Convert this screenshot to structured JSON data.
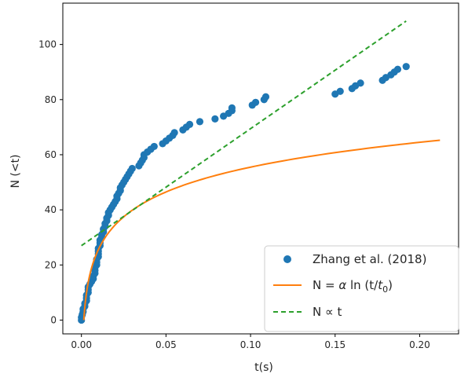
{
  "chart_data": {
    "type": "scatter",
    "title": "",
    "xlabel": "t(s)",
    "ylabel": "N (<t)",
    "xlim": [
      -0.011,
      0.223
    ],
    "ylim": [
      -5,
      115
    ],
    "xticks": [
      0.0,
      0.05,
      0.1,
      0.15,
      0.2
    ],
    "xtick_labels": [
      "0.00",
      "0.05",
      "0.10",
      "0.15",
      "0.20"
    ],
    "yticks": [
      0,
      20,
      40,
      60,
      80,
      100
    ],
    "ytick_labels": [
      "0",
      "20",
      "40",
      "60",
      "80",
      "100"
    ],
    "grid": false,
    "legend_position": "lower-right",
    "series": [
      {
        "name": "Zhang et al. (2018)",
        "kind": "scatter",
        "color": "#1f77b4",
        "points": [
          [
            0.0,
            0
          ],
          [
            0.0,
            1
          ],
          [
            0.0005,
            2
          ],
          [
            0.001,
            3
          ],
          [
            0.001,
            4
          ],
          [
            0.002,
            5
          ],
          [
            0.002,
            6
          ],
          [
            0.003,
            7
          ],
          [
            0.003,
            8
          ],
          [
            0.003,
            9
          ],
          [
            0.004,
            10
          ],
          [
            0.004,
            11
          ],
          [
            0.004,
            12
          ],
          [
            0.005,
            13
          ],
          [
            0.006,
            14
          ],
          [
            0.007,
            15
          ],
          [
            0.007,
            16
          ],
          [
            0.008,
            17
          ],
          [
            0.008,
            18
          ],
          [
            0.008,
            19
          ],
          [
            0.009,
            20
          ],
          [
            0.009,
            21
          ],
          [
            0.009,
            22
          ],
          [
            0.01,
            23
          ],
          [
            0.01,
            24
          ],
          [
            0.01,
            25
          ],
          [
            0.01,
            26
          ],
          [
            0.011,
            27
          ],
          [
            0.011,
            28
          ],
          [
            0.011,
            29
          ],
          [
            0.012,
            30
          ],
          [
            0.012,
            31
          ],
          [
            0.013,
            32
          ],
          [
            0.013,
            33
          ],
          [
            0.014,
            34
          ],
          [
            0.014,
            35
          ],
          [
            0.015,
            36
          ],
          [
            0.015,
            37
          ],
          [
            0.016,
            38
          ],
          [
            0.016,
            39
          ],
          [
            0.017,
            40
          ],
          [
            0.018,
            41
          ],
          [
            0.019,
            42
          ],
          [
            0.02,
            43
          ],
          [
            0.021,
            44
          ],
          [
            0.021,
            45
          ],
          [
            0.022,
            46
          ],
          [
            0.023,
            47
          ],
          [
            0.023,
            48
          ],
          [
            0.024,
            49
          ],
          [
            0.025,
            50
          ],
          [
            0.026,
            51
          ],
          [
            0.027,
            52
          ],
          [
            0.028,
            53
          ],
          [
            0.029,
            54
          ],
          [
            0.03,
            55
          ],
          [
            0.034,
            56
          ],
          [
            0.035,
            57
          ],
          [
            0.036,
            58
          ],
          [
            0.037,
            59
          ],
          [
            0.037,
            60
          ],
          [
            0.039,
            61
          ],
          [
            0.041,
            62
          ],
          [
            0.043,
            63
          ],
          [
            0.048,
            64
          ],
          [
            0.05,
            65
          ],
          [
            0.052,
            66
          ],
          [
            0.054,
            67
          ],
          [
            0.055,
            68
          ],
          [
            0.06,
            69
          ],
          [
            0.062,
            70
          ],
          [
            0.064,
            71
          ],
          [
            0.07,
            72
          ],
          [
            0.079,
            73
          ],
          [
            0.084,
            74
          ],
          [
            0.087,
            75
          ],
          [
            0.089,
            76
          ],
          [
            0.089,
            77
          ],
          [
            0.101,
            78
          ],
          [
            0.103,
            79
          ],
          [
            0.108,
            80
          ],
          [
            0.109,
            81
          ],
          [
            0.15,
            82
          ],
          [
            0.153,
            83
          ],
          [
            0.16,
            84
          ],
          [
            0.162,
            85
          ],
          [
            0.165,
            86
          ],
          [
            0.178,
            87
          ],
          [
            0.18,
            88
          ],
          [
            0.183,
            89
          ],
          [
            0.185,
            90
          ],
          [
            0.187,
            91
          ],
          [
            0.192,
            92
          ]
        ]
      },
      {
        "name": "N = α ln (t/t0)",
        "kind": "line",
        "color": "#ff7f0e",
        "fit": {
          "alpha": 13.0,
          "t0": 0.0014
        },
        "x_range": [
          0.0014,
          0.212
        ]
      },
      {
        "name": "N ∝ t",
        "kind": "line",
        "dash": true,
        "color": "#2ca02c",
        "x": [
          0.0,
          0.192
        ],
        "y": [
          27,
          108.5
        ]
      }
    ],
    "legend": [
      {
        "label": "Zhang et al. (2018)",
        "marker": "circle",
        "color": "#1f77b4"
      },
      {
        "label": "N = α ln (t/t0)",
        "marker": "line",
        "color": "#ff7f0e"
      },
      {
        "label": "N ∝ t",
        "marker": "dashed",
        "color": "#2ca02c"
      }
    ]
  },
  "legend_text": {
    "item0": "Zhang et al. (2018)",
    "item1_prefix": "N = ",
    "item1_alpha": "α",
    "item1_mid": " ln (t/",
    "item1_t": "t",
    "item1_sub": "0",
    "item1_suffix": ")",
    "item2": "N ∝ t"
  },
  "axis_labels": {
    "x": "t(s)",
    "y": "N (<t)"
  }
}
